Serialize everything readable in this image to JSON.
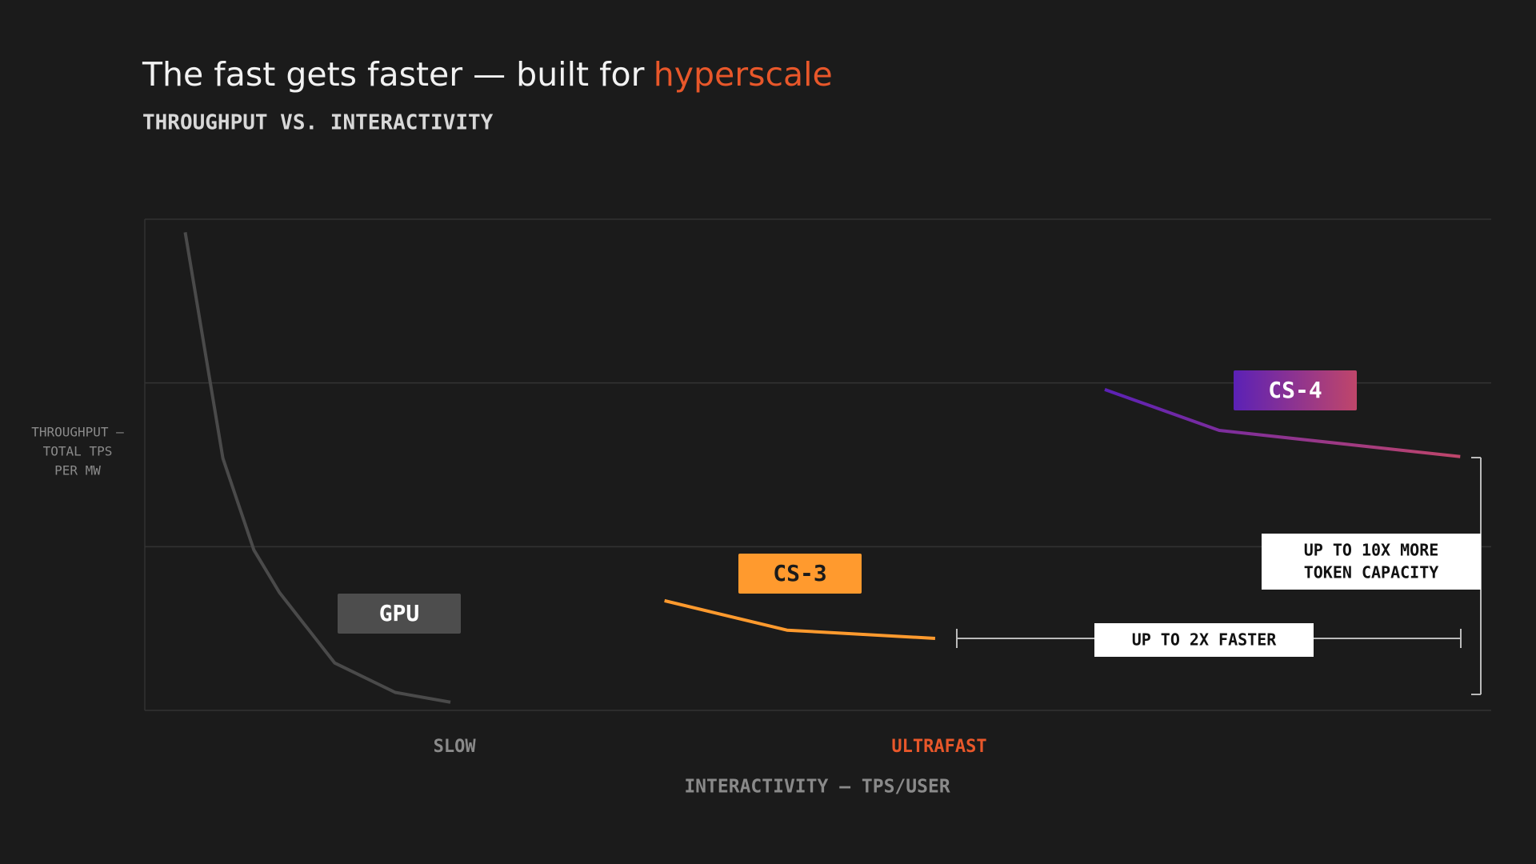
{
  "chart_data": {
    "type": "line",
    "title": "The fast gets faster — built for",
    "title_highlight": "hyperscale",
    "highlight_color": "#e8572a",
    "subtitle": "THROUGHPUT VS. INTERACTIVITY",
    "y_label": [
      "THROUGHPUT —",
      "TOTAL TPS",
      "PER MW"
    ],
    "x_label": "INTERACTIVITY — TPS/USER",
    "x_markers": [
      {
        "label": "SLOW",
        "x": 2.3,
        "color": "#8a8a8a"
      },
      {
        "label": "ULTRAFAST",
        "x": 5.9,
        "color": "#e8572a"
      }
    ],
    "xlim": [
      0,
      10
    ],
    "ylim": [
      0,
      3
    ],
    "yticks": [
      0,
      1,
      2,
      3
    ],
    "grid": true,
    "show_tick_labels": false,
    "series": [
      {
        "name": "GPU",
        "color": "#4a4a4a",
        "label_color": "#4d4d4d",
        "text_color": "#ffffff",
        "x": [
          0.3,
          0.58,
          0.81,
          1.0,
          1.41,
          1.86,
          2.27
        ],
        "values": [
          2.92,
          1.54,
          0.98,
          0.72,
          0.29,
          0.11,
          0.05
        ]
      },
      {
        "name": "CS-3",
        "color": "#ff9a2e",
        "label_color": "#ff9a2e",
        "text_color": "#1b1b1b",
        "x": [
          3.86,
          4.77,
          5.87
        ],
        "values": [
          0.67,
          0.49,
          0.44
        ]
      },
      {
        "name": "CS-4",
        "color": "#5b21b6",
        "color_end": "#c0466a",
        "text_color": "#ffffff",
        "x": [
          7.13,
          7.98,
          9.77
        ],
        "values": [
          1.96,
          1.71,
          1.55
        ]
      }
    ],
    "annotations": [
      {
        "text": [
          "UP TO 2X FASTER"
        ]
      },
      {
        "text": [
          "UP TO 10X MORE",
          "TOKEN CAPACITY"
        ]
      }
    ]
  }
}
